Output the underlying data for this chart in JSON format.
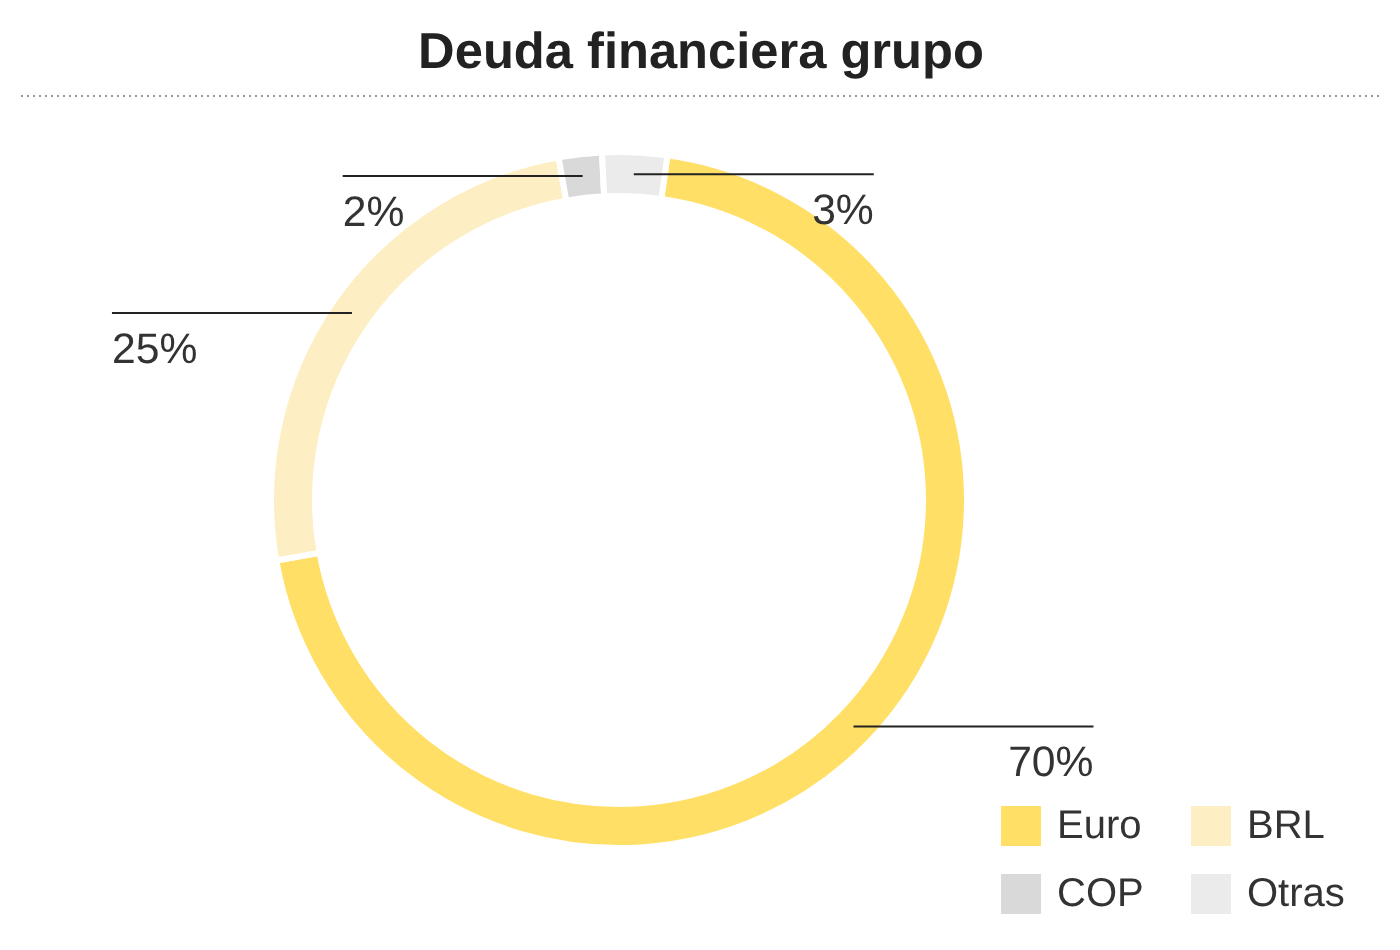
{
  "chart_data": {
    "type": "donut",
    "title": "Deuda financiera grupo",
    "categories": [
      "Euro",
      "BRL",
      "COP",
      "Otras"
    ],
    "values": [
      70,
      25,
      2,
      3
    ],
    "colors": [
      "#ffdf66",
      "#fdefc3",
      "#d9d9d9",
      "#ebebeb"
    ],
    "value_labels": [
      "70%",
      "25%",
      "2%",
      "3%"
    ],
    "legend": "bottom right"
  }
}
